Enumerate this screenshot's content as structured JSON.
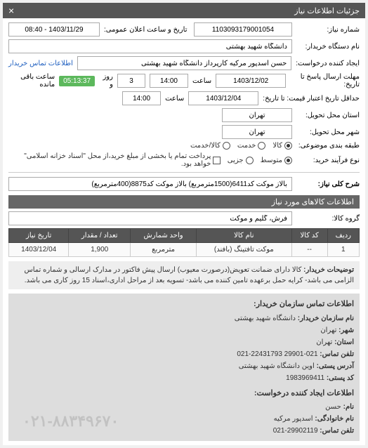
{
  "panel": {
    "title": "جزئیات اطلاعات نیاز",
    "close": "×"
  },
  "fields": {
    "need_no_label": "شماره نیاز:",
    "need_no": "1103093179001054",
    "announce_label": "تاریخ و ساعت اعلان عمومی:",
    "announce_value": "1403/11/29 - 08:40",
    "org_label": "نام دستگاه خریدار:",
    "org_value": "دانشگاه شهید بهشتی",
    "creator_label": "ایجاد کننده درخواست:",
    "creator_value": "حسن اسدپور مرکیه کارپرداز دانشگاه شهید بهشتی",
    "contact_link": "اطلاعات تماس خریدار",
    "deadline_label": "مهلت ارسال پاسخ تا تاریخ:",
    "deadline_date": "1403/12/02",
    "time_label": "ساعت",
    "deadline_time": "14:00",
    "days_label": "روز و",
    "days_value": "3",
    "remain_label": "ساعت باقی مانده",
    "remain_time": "05:13:37",
    "min_valid_label": "حداقل تاریخ اعتبار قیمت: تا تاریخ:",
    "min_valid_date": "1403/12/04",
    "min_valid_time": "14:00",
    "state_label": "استان محل تحویل:",
    "state_value": "تهران",
    "city_label": "شهر محل تحویل:",
    "city_value": "تهران",
    "subject_type_label": "طبقه بندی موضوعی:",
    "radio_kala": "کالا",
    "radio_khadamat": "خدمت",
    "radio_kala_khadamat": "کالا/خدمت",
    "process_label": "نوع فرآیند خرید:",
    "radio_low": "متوسط",
    "radio_part": "جزیی",
    "process_note": "پرداخت تمام یا بخشی از مبلغ خرید،از محل \"اسناد خزانه اسلامی\" خواهد بود."
  },
  "desc": {
    "title_label": "شرح کلی نیاز:",
    "title_value": "بالاز موکت کد6411(1500مترمربع) بالاز موکت کد8875(400مترمربع)",
    "goods_header": "اطلاعات کالاهای مورد نیاز",
    "group_label": "گروه کالا:",
    "group_value": "فرش، گلیم و موکت"
  },
  "table": {
    "headers": [
      "ردیف",
      "کد کالا",
      "نام کالا",
      "واحد شمارش",
      "تعداد / مقدار",
      "تاریخ نیاز"
    ],
    "rows": [
      [
        "1",
        "--",
        "موکت تافتینگ (بافند)",
        "مترمربع",
        "1,900",
        "1403/12/04"
      ]
    ]
  },
  "note": {
    "title": "توضیحات خریدار:",
    "text": "کالا دارای ضمانت تعویض(درصورت معیوب) ارسال پیش فاکتور در مدارک ارسالی و شماره تماس الزامی می باشد- کرایه حمل برعهده تامین کننده می باشد- تسویه بعد از مراحل اداری،اسناد 15 روز کاری می باشد."
  },
  "contact": {
    "header": "اطلاعات تماس سازمان خریدار:",
    "org_lbl": "نام سازمان خریدار:",
    "org": "دانشگاه شهید بهشتی",
    "city_lbl": "شهر:",
    "city": "تهران",
    "state_lbl": "استان:",
    "state": "تهران",
    "phone_lbl": "تلفن تماس:",
    "phone": "021-29901 22431793-021",
    "addr_lbl": "آدرس پستی:",
    "addr": "اوین دانشگاه شهید بهشتی",
    "post_lbl": "کد پستی:",
    "post": "1983969411",
    "creator_hd": "اطلاعات ایجاد کننده درخواست:",
    "name_lbl": "نام:",
    "name": "حسن",
    "lname_lbl": "نام خانوادگی:",
    "lname": "اسدپور مرکیه",
    "cphone_lbl": "تلفن تماس:",
    "cphone": "29902119-021",
    "watermark": "۰۲۱-۸۸۳۴۹۶۷۰"
  }
}
